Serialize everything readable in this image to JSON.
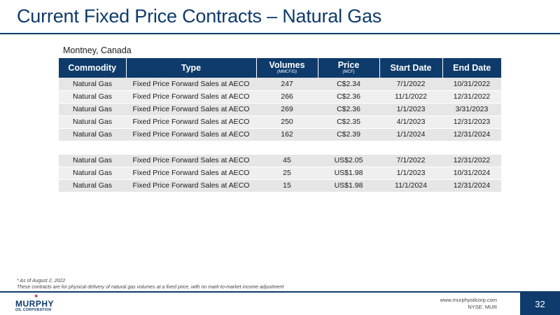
{
  "header": {
    "title": "Current Fixed Price Contracts – Natural Gas"
  },
  "region": "Montney, Canada",
  "table": {
    "columns": [
      {
        "label": "Commodity",
        "sub": ""
      },
      {
        "label": "Type",
        "sub": ""
      },
      {
        "label": "Volumes",
        "sub": "(MMCF/D)"
      },
      {
        "label": "Price",
        "sub": "(MCF)"
      },
      {
        "label": "Start Date",
        "sub": ""
      },
      {
        "label": "End Date",
        "sub": ""
      }
    ],
    "group1": [
      [
        "Natural Gas",
        "Fixed Price Forward Sales at AECO",
        "247",
        "C$2.34",
        "7/1/2022",
        "10/31/2022"
      ],
      [
        "Natural Gas",
        "Fixed Price Forward Sales at AECO",
        "266",
        "C$2.36",
        "11/1/2022",
        "12/31/2022"
      ],
      [
        "Natural Gas",
        "Fixed Price Forward Sales at AECO",
        "269",
        "C$2.36",
        "1/1/2023",
        "3/31/2023"
      ],
      [
        "Natural Gas",
        "Fixed Price Forward Sales at AECO",
        "250",
        "C$2.35",
        "4/1/2023",
        "12/31/2023"
      ],
      [
        "Natural Gas",
        "Fixed Price Forward Sales at AECO",
        "162",
        "C$2.39",
        "1/1/2024",
        "12/31/2024"
      ]
    ],
    "group2": [
      [
        "Natural Gas",
        "Fixed Price Forward Sales at AECO",
        "45",
        "US$2.05",
        "7/1/2022",
        "12/31/2022"
      ],
      [
        "Natural Gas",
        "Fixed Price Forward Sales at AECO",
        "25",
        "US$1.98",
        "1/1/2023",
        "10/31/2024"
      ],
      [
        "Natural Gas",
        "Fixed Price Forward Sales at AECO",
        "15",
        "US$1.98",
        "11/1/2024",
        "12/31/2024"
      ]
    ]
  },
  "footnote": {
    "line1": "* As of August 2, 2022",
    "line2": "These contracts are for physical delivery of natural gas volumes at a fixed price, with no mark-to-market income adjustment"
  },
  "footer": {
    "logo_name": "MURPHY",
    "logo_sub": "OIL CORPORATION",
    "website": "www.murphyoilcorp.com",
    "ticker": "NYSE: MUR",
    "page_number": "32"
  },
  "colors": {
    "brand": "#0e3b6b",
    "accent": "#c8102e"
  }
}
